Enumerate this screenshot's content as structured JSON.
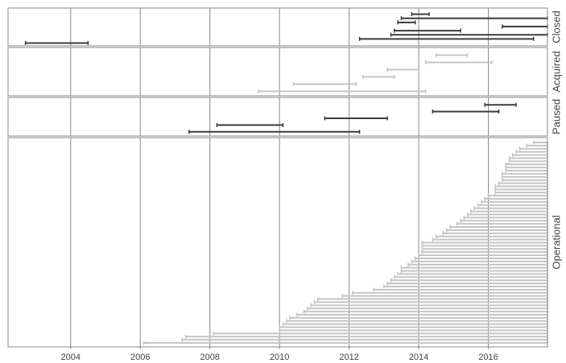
{
  "chart_data": {
    "type": "timeline",
    "title": "",
    "xlabel": "",
    "ylabel": "",
    "xlim": [
      2002.2,
      2017.7
    ],
    "x_ticks": [
      2004,
      2006,
      2008,
      2010,
      2012,
      2014,
      2016
    ],
    "x_tick_labels": [
      "2004",
      "2006",
      "2008",
      "2010",
      "2012",
      "2014",
      "2016"
    ],
    "grid": true,
    "colors": {
      "closed": "#3c3c3c",
      "acquired": "#c4c4c4",
      "paused": "#3c3c3c",
      "operational": "#c4c4c4",
      "grid": "#888888",
      "border": "#888888"
    },
    "facets": [
      {
        "label": "Closed",
        "segments": [
          {
            "start": 2013.8,
            "end": 2014.3
          },
          {
            "start": 2013.5,
            "end": 2017.7
          },
          {
            "start": 2013.4,
            "end": 2013.9
          },
          {
            "start": 2016.4,
            "end": 2017.7
          },
          {
            "start": 2013.3,
            "end": 2015.2
          },
          {
            "start": 2013.2,
            "end": 2017.7
          },
          {
            "start": 2012.3,
            "end": 2017.3
          },
          {
            "start": 2002.7,
            "end": 2004.5
          }
        ]
      },
      {
        "label": "Acquired",
        "segments": [
          {
            "start": 2014.5,
            "end": 2015.4
          },
          {
            "start": 2014.2,
            "end": 2016.1
          },
          {
            "start": 2013.1,
            "end": 2014.0
          },
          {
            "start": 2012.4,
            "end": 2013.3
          },
          {
            "start": 2010.4,
            "end": 2012.2
          },
          {
            "start": 2009.4,
            "end": 2014.2
          }
        ]
      },
      {
        "label": "Paused",
        "segments": [
          {
            "start": 2015.9,
            "end": 2016.8
          },
          {
            "start": 2014.4,
            "end": 2016.3
          },
          {
            "start": 2011.3,
            "end": 2013.1
          },
          {
            "start": 2008.2,
            "end": 2010.1
          },
          {
            "start": 2007.4,
            "end": 2012.3
          }
        ]
      },
      {
        "label": "Operational",
        "end": 2017.7,
        "starts": [
          2017.3,
          2017.1,
          2016.9,
          2016.8,
          2016.7,
          2016.6,
          2016.6,
          2016.5,
          2016.5,
          2016.5,
          2016.4,
          2016.4,
          2016.4,
          2016.3,
          2016.2,
          2016.2,
          2016.2,
          2016.0,
          2015.9,
          2015.8,
          2015.7,
          2015.6,
          2015.5,
          2015.4,
          2015.3,
          2015.2,
          2015.1,
          2014.9,
          2014.8,
          2014.7,
          2014.5,
          2014.4,
          2014.1,
          2014.1,
          2014.1,
          2014.1,
          2014.0,
          2013.9,
          2013.8,
          2013.7,
          2013.5,
          2013.5,
          2013.4,
          2013.3,
          2013.2,
          2013.1,
          2013.0,
          2012.7,
          2012.1,
          2011.8,
          2011.1,
          2011.0,
          2010.9,
          2010.8,
          2010.7,
          2010.5,
          2010.3,
          2010.2,
          2010.1,
          2010.0,
          2010.0,
          2008.1,
          2007.3,
          2007.2,
          2006.1
        ]
      }
    ]
  }
}
